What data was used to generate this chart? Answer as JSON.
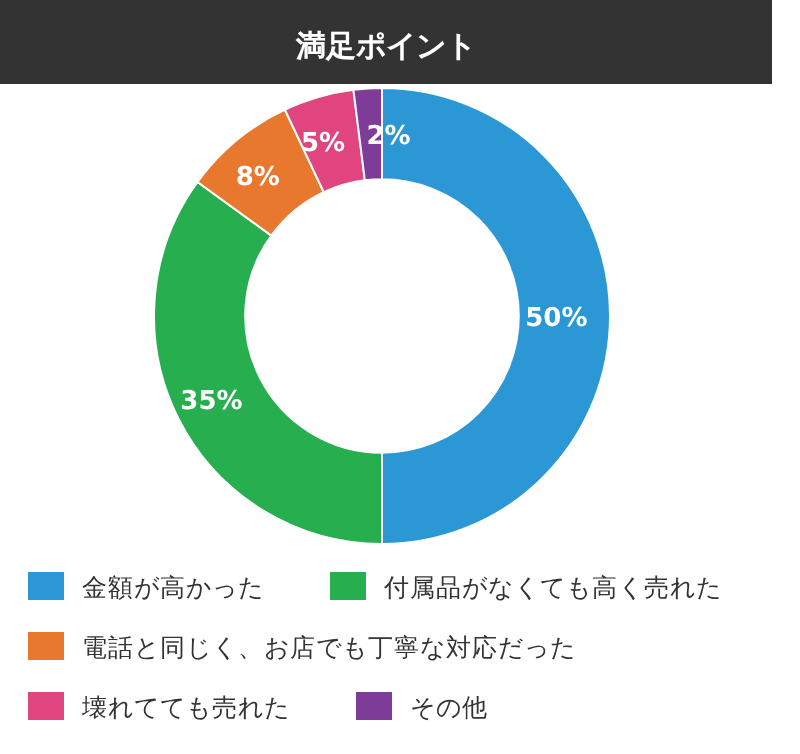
{
  "chart_data": {
    "type": "donut",
    "title": "満足ポイント",
    "categories": [
      "金額が高かった",
      "付属品がなくても高く売れた",
      "電話と同じく、お店でも丁寧な対応だった",
      "壊れてても売れた",
      "その他"
    ],
    "values": [
      50,
      35,
      8,
      5,
      2
    ],
    "value_labels": [
      "50%",
      "35%",
      "8%",
      "5%",
      "2%"
    ],
    "colors": [
      "#2b97d4",
      "#27ae4f",
      "#e8782e",
      "#e0457f",
      "#7d3c98"
    ],
    "legend": "bottom"
  }
}
